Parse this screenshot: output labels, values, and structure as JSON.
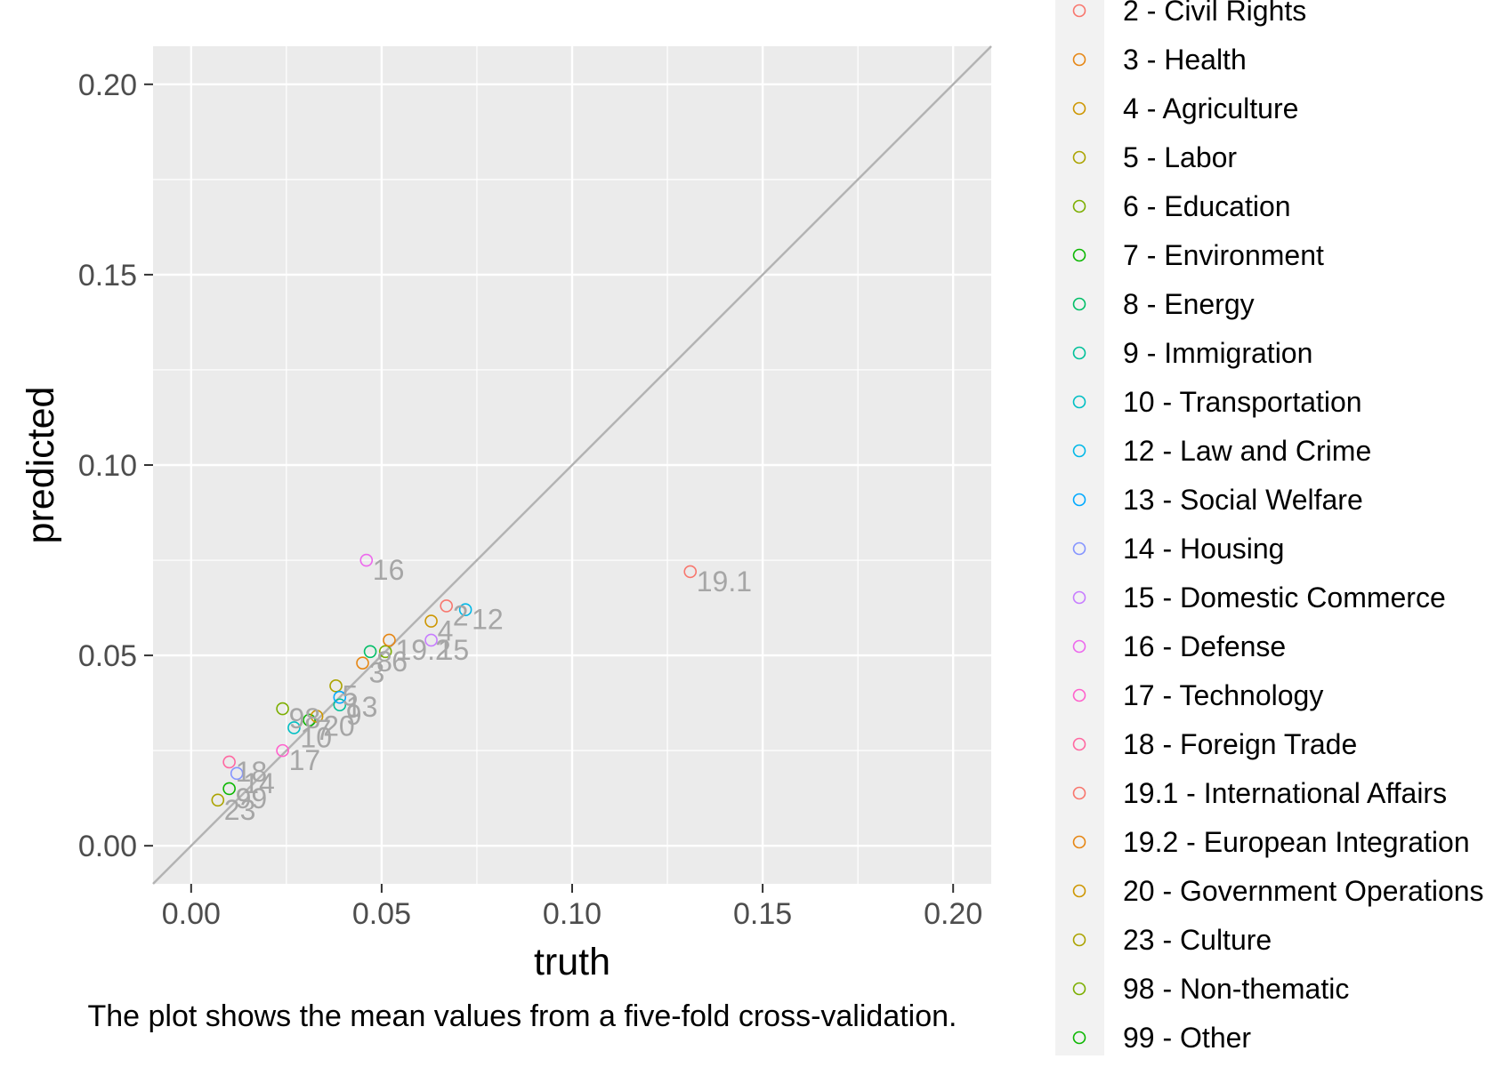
{
  "chart_data": {
    "type": "scatter",
    "xlabel": "truth",
    "ylabel": "predicted",
    "caption": "The plot shows the mean values from a five-fold cross-validation.",
    "xlim": [
      -0.01,
      0.21
    ],
    "ylim": [
      -0.01,
      0.21
    ],
    "x_ticks": [
      0.0,
      0.05,
      0.1,
      0.15,
      0.2
    ],
    "x_tick_labels": [
      "0.00",
      "0.05",
      "0.10",
      "0.15",
      "0.20"
    ],
    "y_ticks": [
      0.0,
      0.05,
      0.1,
      0.15,
      0.2
    ],
    "y_tick_labels": [
      "0.00",
      "0.05",
      "0.10",
      "0.15",
      "0.20"
    ],
    "grid": true,
    "reference_line": "y = x",
    "legend_position": "right",
    "colors": {
      "panel_background": "#ebebeb",
      "grid_line": "#ffffff",
      "reference_line": "#b3b3b3",
      "point_label": "#a6a6a6",
      "legend_background": "#f2f2f2"
    },
    "legend": [
      {
        "label": "2 - Civil Rights",
        "color": "#F8766D"
      },
      {
        "label": "3 - Health",
        "color": "#E68613"
      },
      {
        "label": "4 - Agriculture",
        "color": "#CD9600"
      },
      {
        "label": "5 - Labor",
        "color": "#ABA300"
      },
      {
        "label": "6 - Education",
        "color": "#7CAE00"
      },
      {
        "label": "7 - Environment",
        "color": "#0CB702"
      },
      {
        "label": "8 - Energy",
        "color": "#00BE67"
      },
      {
        "label": "9 - Immigration",
        "color": "#00C19A"
      },
      {
        "label": "10 - Transportation",
        "color": "#00BFC4"
      },
      {
        "label": "12 - Law and Crime",
        "color": "#00B8E7"
      },
      {
        "label": "13 - Social Welfare",
        "color": "#00A9FF"
      },
      {
        "label": "14 - Housing",
        "color": "#8494FF"
      },
      {
        "label": "15 - Domestic Commerce",
        "color": "#C77CFF"
      },
      {
        "label": "16 - Defense",
        "color": "#ED68ED"
      },
      {
        "label": "17 - Technology",
        "color": "#FF61CC"
      },
      {
        "label": "18 - Foreign Trade",
        "color": "#FF68A1"
      },
      {
        "label": "19.1 - International Affairs",
        "color": "#F8766D"
      },
      {
        "label": "19.2 - European Integration",
        "color": "#E68613"
      },
      {
        "label": "20 - Government Operations",
        "color": "#CD9600"
      },
      {
        "label": "23 - Culture",
        "color": "#ABA300"
      },
      {
        "label": "98 - Non-thematic",
        "color": "#7CAE00"
      },
      {
        "label": "99 - Other",
        "color": "#0CB702"
      }
    ],
    "points": [
      {
        "label": "2",
        "x": 0.067,
        "y": 0.063,
        "color": "#F8766D"
      },
      {
        "label": "3",
        "x": 0.045,
        "y": 0.048,
        "color": "#E68613"
      },
      {
        "label": "4",
        "x": 0.063,
        "y": 0.059,
        "color": "#CD9600"
      },
      {
        "label": "5",
        "x": 0.038,
        "y": 0.042,
        "color": "#ABA300"
      },
      {
        "label": "6",
        "x": 0.051,
        "y": 0.051,
        "color": "#7CAE00"
      },
      {
        "label": "7",
        "x": 0.031,
        "y": 0.033,
        "color": "#0CB702"
      },
      {
        "label": "8",
        "x": 0.047,
        "y": 0.051,
        "color": "#00BE67"
      },
      {
        "label": "9",
        "x": 0.039,
        "y": 0.037,
        "color": "#00C19A"
      },
      {
        "label": "10",
        "x": 0.027,
        "y": 0.031,
        "color": "#00BFC4"
      },
      {
        "label": "12",
        "x": 0.072,
        "y": 0.062,
        "color": "#00B8E7"
      },
      {
        "label": "13",
        "x": 0.039,
        "y": 0.039,
        "color": "#00A9FF"
      },
      {
        "label": "14",
        "x": 0.012,
        "y": 0.019,
        "color": "#8494FF"
      },
      {
        "label": "15",
        "x": 0.063,
        "y": 0.054,
        "color": "#C77CFF"
      },
      {
        "label": "16",
        "x": 0.046,
        "y": 0.075,
        "color": "#ED68ED"
      },
      {
        "label": "17",
        "x": 0.024,
        "y": 0.025,
        "color": "#FF61CC"
      },
      {
        "label": "18",
        "x": 0.01,
        "y": 0.022,
        "color": "#FF68A1"
      },
      {
        "label": "19.1",
        "x": 0.131,
        "y": 0.072,
        "color": "#F8766D"
      },
      {
        "label": "19.2",
        "x": 0.052,
        "y": 0.054,
        "color": "#E68613"
      },
      {
        "label": "20",
        "x": 0.033,
        "y": 0.034,
        "color": "#CD9600"
      },
      {
        "label": "23",
        "x": 0.007,
        "y": 0.012,
        "color": "#ABA300"
      },
      {
        "label": "98",
        "x": 0.024,
        "y": 0.036,
        "color": "#7CAE00"
      },
      {
        "label": "99",
        "x": 0.01,
        "y": 0.015,
        "color": "#0CB702"
      }
    ]
  }
}
